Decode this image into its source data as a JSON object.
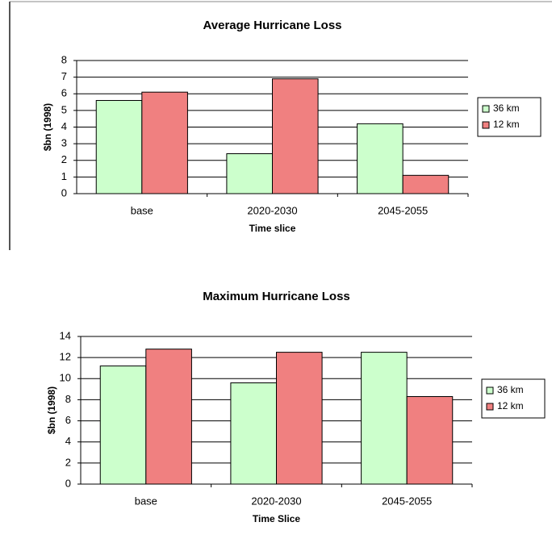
{
  "chart_data": [
    {
      "type": "bar",
      "title": "Average Hurricane Loss",
      "y_label": "$bn (1998)",
      "x_label": "Time slice",
      "categories": [
        "base",
        "2020-2030",
        "2045-2055"
      ],
      "series": [
        {
          "name": "36 km",
          "color": "#ccffcc",
          "values": [
            5.6,
            2.4,
            4.2
          ]
        },
        {
          "name": "12 km",
          "color": "#f08080",
          "values": [
            6.1,
            6.9,
            1.1
          ]
        }
      ],
      "ylim": [
        0,
        8
      ],
      "yticks": [
        0,
        1,
        2,
        3,
        4,
        5,
        6,
        7,
        8
      ],
      "grid": true,
      "legend": "right"
    },
    {
      "type": "bar",
      "title": "Maximum Hurricane Loss",
      "y_label": "$bn (1998)",
      "x_label": "Time Slice",
      "categories": [
        "base",
        "2020-2030",
        "2045-2055"
      ],
      "series": [
        {
          "name": "36 km",
          "color": "#ccffcc",
          "values": [
            11.2,
            9.6,
            12.5
          ]
        },
        {
          "name": "12 km",
          "color": "#f08080",
          "values": [
            12.8,
            12.5,
            8.3
          ]
        }
      ],
      "ylim": [
        0,
        14
      ],
      "yticks": [
        0,
        2,
        4,
        6,
        8,
        10,
        12,
        14
      ],
      "grid": true,
      "legend": "right"
    }
  ]
}
